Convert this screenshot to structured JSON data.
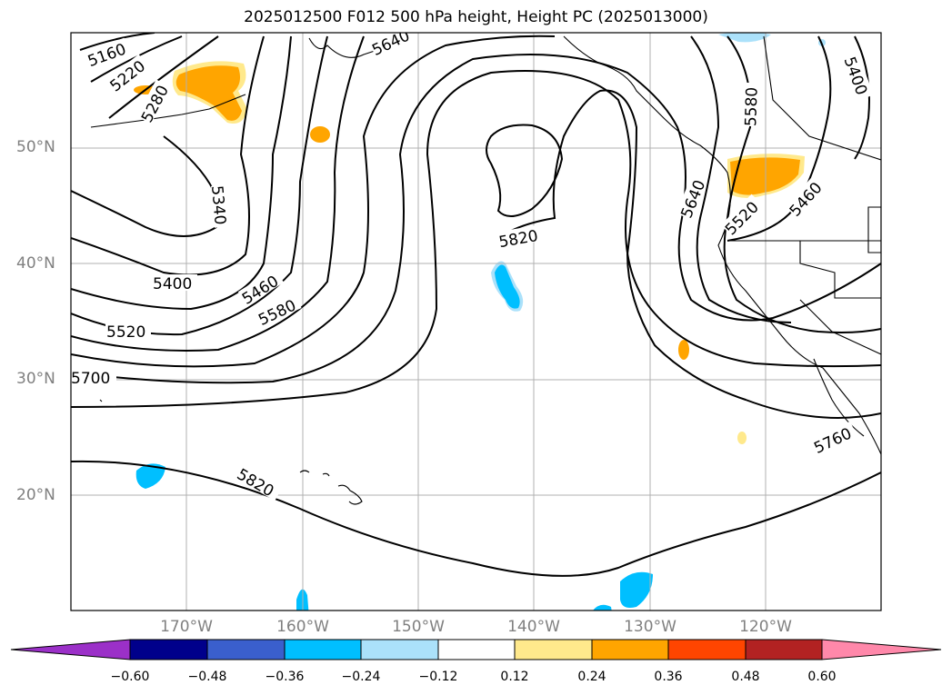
{
  "title": "2025012500 F012 500 hPa height, Height PC (2025013000)",
  "lat_labels": [
    "50°N",
    "40°N",
    "30°N",
    "20°N"
  ],
  "lon_labels": [
    "170°W",
    "160°W",
    "150°W",
    "140°W",
    "130°W",
    "120°W"
  ],
  "contour_labels": [
    "5160",
    "5220",
    "5280",
    "5340",
    "5400",
    "5460",
    "5520",
    "5580",
    "5640",
    "5700",
    "5760",
    "5820",
    "5820",
    "5400",
    "5460",
    "5520",
    "5580",
    "5640"
  ],
  "colorbar": {
    "ticks": [
      "−0.60",
      "−0.48",
      "−0.36",
      "−0.24",
      "−0.12",
      "0.12",
      "0.24",
      "0.36",
      "0.48",
      "0.60"
    ],
    "colors": [
      "#9b30c8",
      "#00008b",
      "#3a5fcd",
      "#00bfff",
      "#abe1fa",
      "#ffffff",
      "#ffe98c",
      "#ffa500",
      "#ff4500",
      "#b22222",
      "#ff88aa"
    ]
  }
}
